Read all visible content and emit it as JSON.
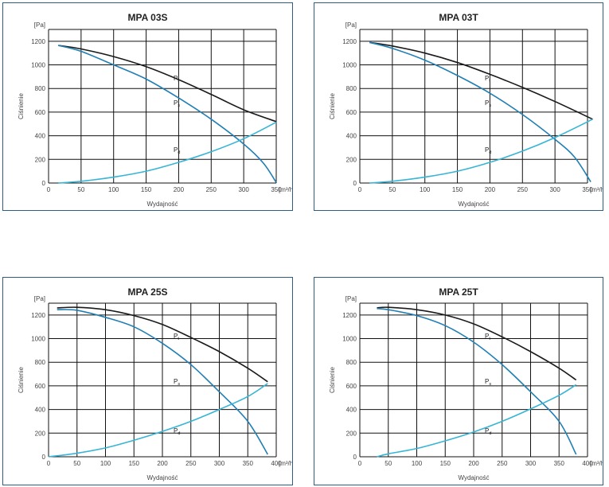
{
  "chart_data": [
    {
      "type": "line",
      "title": "MPA 03S",
      "xlabel": "Wydajność",
      "ylabel": "Ciśnienie",
      "y_unit": "[Pa]",
      "x_unit": "[m³/h]",
      "xlim": [
        0,
        350
      ],
      "ylim": [
        0,
        1300
      ],
      "xticks": [
        0,
        50,
        100,
        150,
        200,
        250,
        300,
        350
      ],
      "yticks": [
        0,
        200,
        400,
        600,
        800,
        1000,
        1200
      ],
      "series": [
        {
          "name": "Pt",
          "base": "P",
          "subscript": "t",
          "color": "#1a1a1a",
          "x": [
            15,
            50,
            100,
            150,
            200,
            250,
            300,
            350
          ],
          "y": [
            1165,
            1135,
            1070,
            985,
            875,
            750,
            620,
            520
          ]
        },
        {
          "name": "Ps",
          "base": "P",
          "subscript": "s",
          "color": "#1f7fb5",
          "x": [
            15,
            50,
            100,
            150,
            200,
            250,
            300,
            330,
            350
          ],
          "y": [
            1165,
            1115,
            1000,
            880,
            720,
            540,
            330,
            170,
            5
          ]
        },
        {
          "name": "Pd",
          "base": "P",
          "subscript": "d",
          "color": "#36b5d6",
          "x": [
            15,
            50,
            100,
            150,
            200,
            250,
            300,
            350
          ],
          "y": [
            0,
            15,
            50,
            100,
            175,
            265,
            375,
            515
          ]
        }
      ]
    },
    {
      "type": "line",
      "title": "MPA 03T",
      "xlabel": "Wydajność",
      "ylabel": "Ciśnienie",
      "y_unit": "[Pa]",
      "x_unit": "[m³/h]",
      "xlim": [
        0,
        350
      ],
      "ylim": [
        0,
        1300
      ],
      "xticks": [
        0,
        50,
        100,
        150,
        200,
        250,
        300,
        350
      ],
      "yticks": [
        0,
        200,
        400,
        600,
        800,
        1000,
        1200
      ],
      "series": [
        {
          "name": "Pt",
          "base": "P",
          "subscript": "t",
          "color": "#1a1a1a",
          "x": [
            15,
            50,
            100,
            150,
            200,
            250,
            300,
            358
          ],
          "y": [
            1190,
            1160,
            1100,
            1020,
            920,
            810,
            690,
            540
          ]
        },
        {
          "name": "Ps",
          "base": "P",
          "subscript": "s",
          "color": "#1f7fb5",
          "x": [
            15,
            50,
            100,
            150,
            200,
            250,
            300,
            330,
            355
          ],
          "y": [
            1190,
            1140,
            1040,
            910,
            760,
            580,
            370,
            220,
            10
          ]
        },
        {
          "name": "Pd",
          "base": "P",
          "subscript": "d",
          "color": "#36b5d6",
          "x": [
            15,
            50,
            100,
            150,
            200,
            250,
            300,
            358
          ],
          "y": [
            0,
            15,
            50,
            100,
            175,
            270,
            385,
            540
          ]
        }
      ]
    },
    {
      "type": "line",
      "title": "MPA 25S",
      "xlabel": "Wydajność",
      "ylabel": "Ciśnienie",
      "y_unit": "[Pa]",
      "x_unit": "[m³/h]",
      "xlim": [
        0,
        400
      ],
      "ylim": [
        0,
        1300
      ],
      "xticks": [
        0,
        50,
        100,
        150,
        200,
        250,
        300,
        350,
        400
      ],
      "yticks": [
        0,
        200,
        400,
        600,
        800,
        1000,
        1200
      ],
      "series": [
        {
          "name": "Pt",
          "base": "P",
          "subscript": "t",
          "color": "#1a1a1a",
          "x": [
            15,
            50,
            100,
            150,
            200,
            250,
            300,
            350,
            385
          ],
          "y": [
            1260,
            1265,
            1245,
            1195,
            1120,
            1010,
            890,
            750,
            635
          ]
        },
        {
          "name": "Ps",
          "base": "P",
          "subscript": "s",
          "color": "#1f7fb5",
          "x": [
            15,
            50,
            100,
            150,
            200,
            250,
            300,
            350,
            385
          ],
          "y": [
            1245,
            1240,
            1180,
            1100,
            960,
            780,
            550,
            300,
            20
          ]
        },
        {
          "name": "Pd",
          "base": "P",
          "subscript": "d",
          "color": "#36b5d6",
          "x": [
            0,
            50,
            100,
            150,
            200,
            250,
            300,
            350,
            385
          ],
          "y": [
            0,
            30,
            75,
            140,
            215,
            300,
            400,
            510,
            620
          ]
        }
      ]
    },
    {
      "type": "line",
      "title": "MPA 25T",
      "xlabel": "Wydajność",
      "ylabel": "Ciśnienie",
      "y_unit": "[Pa]",
      "x_unit": "[m³/h]",
      "xlim": [
        0,
        400
      ],
      "ylim": [
        0,
        1300
      ],
      "xticks": [
        0,
        50,
        100,
        150,
        200,
        250,
        300,
        350,
        400
      ],
      "yticks": [
        0,
        200,
        400,
        600,
        800,
        1000,
        1200
      ],
      "series": [
        {
          "name": "Pt",
          "base": "P",
          "subscript": "t",
          "color": "#1a1a1a",
          "x": [
            30,
            50,
            100,
            150,
            200,
            250,
            300,
            350,
            380
          ],
          "y": [
            1260,
            1265,
            1245,
            1200,
            1125,
            1015,
            890,
            750,
            650
          ]
        },
        {
          "name": "Ps",
          "base": "P",
          "subscript": "s",
          "color": "#1f7fb5",
          "x": [
            30,
            50,
            100,
            150,
            200,
            250,
            300,
            350,
            380
          ],
          "y": [
            1255,
            1245,
            1195,
            1110,
            970,
            780,
            550,
            300,
            20
          ]
        },
        {
          "name": "Pd",
          "base": "P",
          "subscript": "d",
          "color": "#36b5d6",
          "x": [
            30,
            50,
            100,
            150,
            200,
            250,
            300,
            350,
            380
          ],
          "y": [
            0,
            25,
            70,
            135,
            210,
            300,
            405,
            520,
            610
          ]
        }
      ]
    }
  ]
}
